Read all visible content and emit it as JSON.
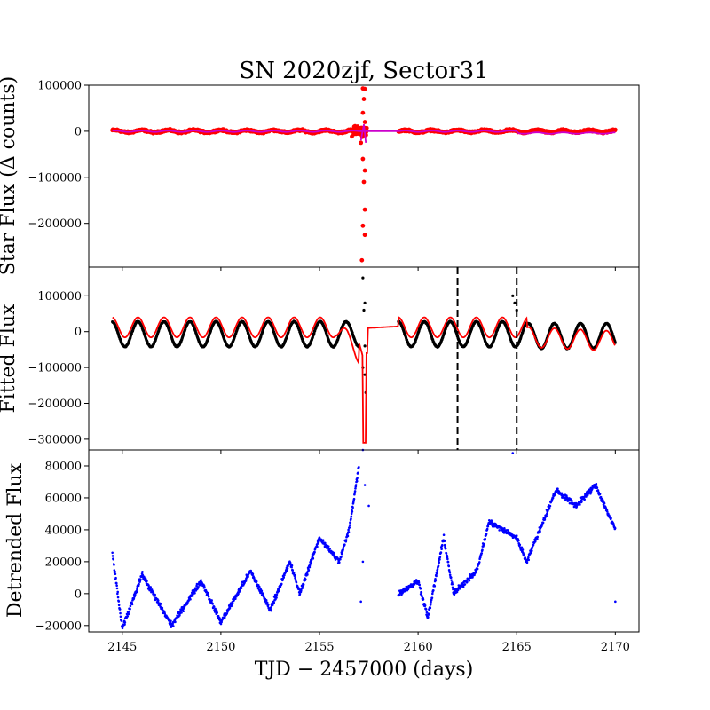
{
  "chart_data": [
    {
      "panel": "top",
      "type": "scatter",
      "title": "SN 2020zjf, Sector31",
      "ylabel": "Star Flux (Δ counts)",
      "xlabel": "",
      "xlim": [
        2143.3,
        2171.2
      ],
      "ylim": [
        -295000,
        100000
      ],
      "y_ticks": [
        100000,
        0,
        -100000,
        -200000
      ],
      "y_tick_labels": [
        "100000",
        "0",
        "−100000",
        "−200000"
      ],
      "x_ticks_shown": false,
      "series": [
        {
          "color": "#ff0000",
          "marker": "circle",
          "style": "dense noisy band near 0 from 2144.5 to 2157.0 and 2159.0 to 2170.0, large scatter near 2157.2",
          "outliers": [
            [
              2157.2,
              93000
            ],
            [
              2157.3,
              92000
            ],
            [
              2157.25,
              70000
            ],
            [
              2157.2,
              40000
            ],
            [
              2157.3,
              20000
            ],
            [
              2157.1,
              -25000
            ],
            [
              2157.2,
              -60000
            ],
            [
              2157.3,
              -85000
            ],
            [
              2157.25,
              -110000
            ],
            [
              2157.3,
              -170000
            ],
            [
              2157.2,
              -205000
            ],
            [
              2157.3,
              -225000
            ],
            [
              2157.15,
              -280000
            ]
          ]
        },
        {
          "color": "#cc00cc",
          "style": "line",
          "description": "smoothed model near 0 with straight segment across data gap"
        },
        {
          "color": "#ff8c00",
          "style": "thin line",
          "description": "secondary model near 0"
        }
      ],
      "grid": false
    },
    {
      "panel": "middle",
      "type": "line",
      "ylabel": "Fitted Flux",
      "xlabel": "",
      "xlim": [
        2143.3,
        2171.2
      ],
      "ylim": [
        -330000,
        180000
      ],
      "y_ticks": [
        100000,
        0,
        -100000,
        -200000,
        -300000
      ],
      "y_tick_labels": [
        "100000",
        "0",
        "−100000",
        "−200000",
        "−300000"
      ],
      "x_ticks_shown": false,
      "series": [
        {
          "color": "#000000",
          "style": "points",
          "description": "sinusoidal oscillation with period ~1.32 days, amplitude ~35000",
          "period_days": 1.32,
          "amplitude": 35000,
          "x_range": [
            2144.5,
            2170.0
          ]
        },
        {
          "color": "#ff0000",
          "style": "line",
          "description": "model fit, oscillation with offset and deep dip to about -310000 near 2157.3",
          "dip": [
            2157.3,
            -310000
          ]
        }
      ],
      "vertical_lines": [
        {
          "x": 2162.0,
          "style": "dashed",
          "color": "#000000"
        },
        {
          "x": 2165.0,
          "style": "dashed",
          "color": "#000000"
        }
      ],
      "grid": false
    },
    {
      "panel": "bottom",
      "type": "scatter",
      "ylabel": "Detrended Flux",
      "xlabel": "TJD − 2457000 (days)",
      "xlim": [
        2143.3,
        2171.2
      ],
      "ylim": [
        -24000,
        90000
      ],
      "x_ticks": [
        2145,
        2150,
        2155,
        2160,
        2165,
        2170
      ],
      "x_tick_labels": [
        "2145",
        "2150",
        "2155",
        "2160",
        "2165",
        "2170"
      ],
      "y_ticks": [
        80000,
        60000,
        40000,
        20000,
        0,
        -20000
      ],
      "y_tick_labels": [
        "80000",
        "60000",
        "40000",
        "20000",
        "0",
        "−20000"
      ],
      "series": [
        {
          "color": "#0000ff",
          "marker": "dot",
          "trend": [
            [
              2144.5,
              25000
            ],
            [
              2145.0,
              -22000
            ],
            [
              2146.0,
              12000
            ],
            [
              2147.5,
              -20000
            ],
            [
              2149.0,
              8000
            ],
            [
              2150.0,
              -18000
            ],
            [
              2151.5,
              14000
            ],
            [
              2152.5,
              -10000
            ],
            [
              2153.5,
              20000
            ],
            [
              2154.0,
              0
            ],
            [
              2155.0,
              35000
            ],
            [
              2156.0,
              20000
            ],
            [
              2156.5,
              40000
            ],
            [
              2157.0,
              80000
            ],
            [
              2157.3,
              65000
            ],
            [
              2159.0,
              0
            ],
            [
              2160.0,
              8000
            ],
            [
              2160.5,
              -15000
            ],
            [
              2161.3,
              35000
            ],
            [
              2161.8,
              0
            ],
            [
              2163.0,
              15000
            ],
            [
              2163.6,
              45000
            ],
            [
              2165.0,
              35000
            ],
            [
              2165.5,
              20000
            ],
            [
              2166.5,
              50000
            ],
            [
              2167.0,
              65000
            ],
            [
              2168.0,
              55000
            ],
            [
              2169.0,
              68000
            ],
            [
              2170.0,
              40000
            ]
          ],
          "outliers": [
            [
              2157.2,
              90000
            ],
            [
              2157.3,
              68000
            ],
            [
              2157.5,
              55000
            ],
            [
              2157.2,
              20000
            ],
            [
              2157.1,
              -5000
            ],
            [
              2164.8,
              88000
            ],
            [
              2170.0,
              -5000
            ]
          ]
        }
      ],
      "grid": false
    }
  ]
}
